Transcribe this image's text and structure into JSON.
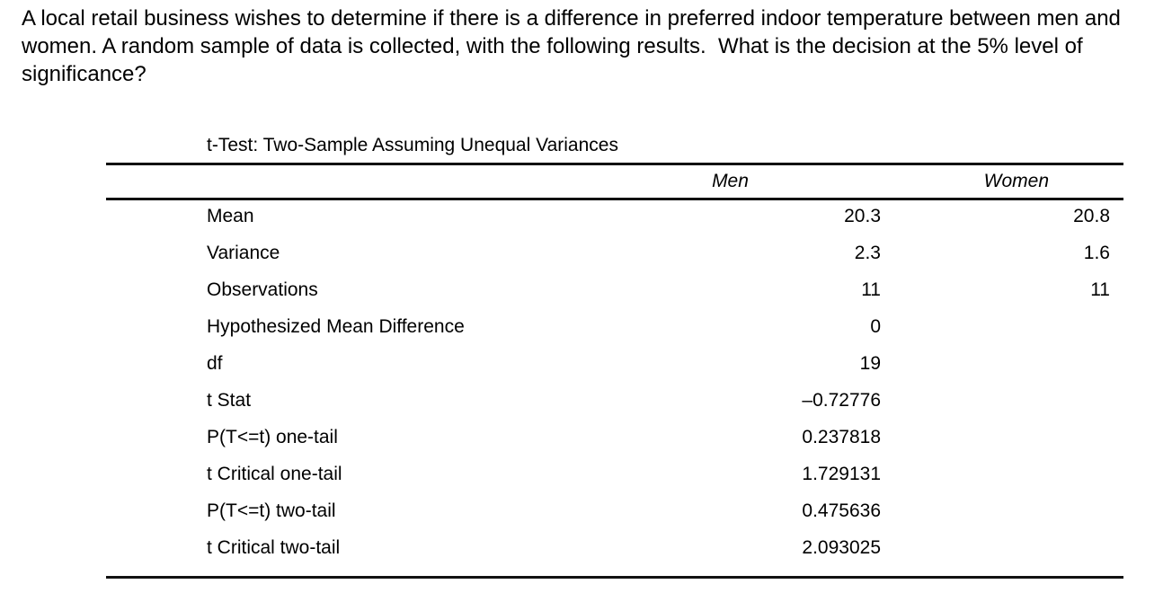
{
  "question": {
    "text": "A local retail business wishes to determine if there is a difference in preferred indoor temperature between men and women. A random sample of data is collected, with the following results.  What is the decision at the 5% level of significance?"
  },
  "table": {
    "title": "t-Test: Two-Sample Assuming Unequal Variances",
    "columns": [
      "",
      "Men",
      "Women"
    ],
    "rows": [
      {
        "label": "Mean",
        "men": "20.3",
        "women": "20.8"
      },
      {
        "label": "Variance",
        "men": "2.3",
        "women": "1.6"
      },
      {
        "label": "Observations",
        "men": "11",
        "women": "11"
      },
      {
        "label": "Hypothesized Mean Difference",
        "men": "0",
        "women": ""
      },
      {
        "label": "df",
        "men": "19",
        "women": ""
      },
      {
        "label": "t Stat",
        "men": "–0.72776",
        "women": ""
      },
      {
        "label": "P(T<=t) one-tail",
        "men": "0.237818",
        "women": ""
      },
      {
        "label": "t Critical one-tail",
        "men": "1.729131",
        "women": ""
      },
      {
        "label": "P(T<=t) two-tail",
        "men": "0.475636",
        "women": ""
      },
      {
        "label": "t Critical two-tail",
        "men": "2.093025",
        "women": ""
      }
    ]
  }
}
